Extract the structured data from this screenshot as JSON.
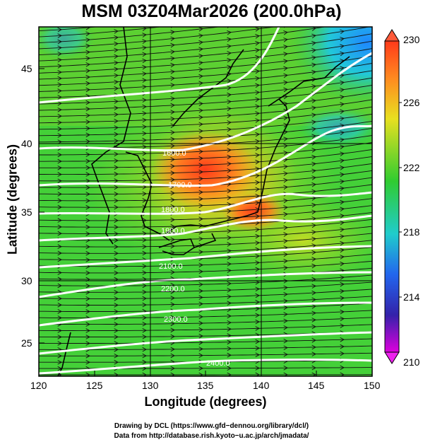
{
  "title": "MSM 03Z04Mar2026 (200.0hPa)",
  "x_axis": {
    "title": "Longitude (degrees)",
    "ticks": [
      "120",
      "125",
      "130",
      "135",
      "140",
      "145",
      "150"
    ]
  },
  "y_axis": {
    "title": "Latitude  (degrees)",
    "ticks": [
      "45",
      "40",
      "35",
      "30",
      "25"
    ]
  },
  "colorbar": {
    "ticks": [
      "230",
      "226",
      "222",
      "218",
      "214",
      "210"
    ],
    "colors": [
      "#ff3300",
      "#ff8c1a",
      "#e6e61a",
      "#33cc33",
      "#22cccc",
      "#2266ff",
      "#3322aa",
      "#cc00cc"
    ]
  },
  "contours": {
    "labels": [
      "1600.0",
      "1700.0",
      "1800.0",
      "1900.0",
      "2000.0",
      "2100.0",
      "2200.0",
      "2300.0",
      "2400.0"
    ]
  },
  "credits": {
    "line1": "Drawing by DCL (https://www.gfd−dennou.org/library/dcl/)",
    "line2": "Data from http://database.rish.kyoto−u.ac.jp/arch/jmadata/"
  }
}
